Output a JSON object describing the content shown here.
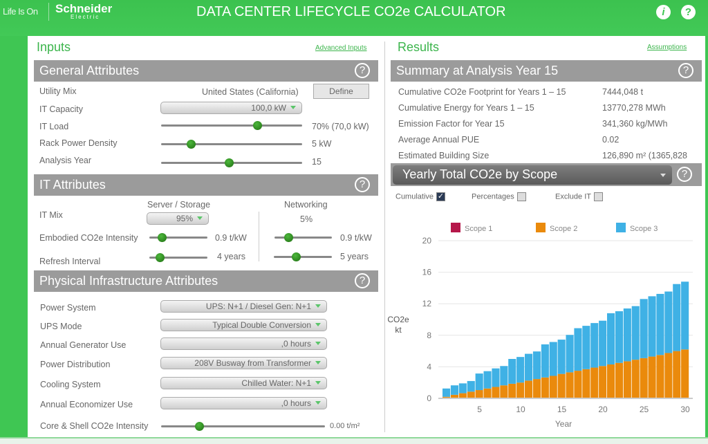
{
  "header": {
    "life_is_on": "Life Is On",
    "brand": "Schneider",
    "brand_sub": "Electric",
    "title": "DATA CENTER LIFECYCLE CO2e CALCULATOR",
    "info_icon": "i",
    "help_icon": "?"
  },
  "inputs": {
    "title": "Inputs",
    "advanced_link": "Advanced Inputs",
    "general": {
      "title": "General Attributes",
      "utility_mix": {
        "label": "Utility Mix",
        "value": "United States (California)",
        "button": "Define"
      },
      "it_capacity": {
        "label": "IT Capacity",
        "value": "100,0 kW"
      },
      "it_load": {
        "label": "IT Load",
        "value": "70% (70,0 kW)",
        "slider_fraction": 0.68
      },
      "rack_density": {
        "label": "Rack Power Density",
        "value": "5 kW",
        "slider_fraction": 0.21
      },
      "analysis_year": {
        "label": "Analysis Year",
        "value": "15",
        "slider_fraction": 0.48
      }
    },
    "it": {
      "title": "IT Attributes",
      "col_server": "Server / Storage",
      "col_network": "Networking",
      "it_mix": {
        "label": "IT Mix",
        "server": "95%",
        "network": "5%"
      },
      "embodied": {
        "label": "Embodied CO2e Intensity",
        "server": "0.9 t/kW",
        "network": "0.9 t/kW",
        "server_fraction": 0.22,
        "network_fraction": 0.24
      },
      "refresh": {
        "label": "Refresh Interval",
        "server": "4 years",
        "network": "5 years",
        "server_fraction": 0.18,
        "network_fraction": 0.38
      }
    },
    "physical": {
      "title": "Physical Infrastructure Attributes",
      "rows": [
        {
          "label": "Power System",
          "value": "UPS: N+1 / Diesel Gen: N+1"
        },
        {
          "label": "UPS Mode",
          "value": "Typical Double Conversion"
        },
        {
          "label": "Annual Generator Use",
          "value": ",0 hours"
        },
        {
          "label": "Power Distribution",
          "value": "208V Busway from Transformer"
        },
        {
          "label": "Cooling System",
          "value": "Chilled Water: N+1"
        },
        {
          "label": "Annual Economizer Use",
          "value": ",0 hours"
        }
      ],
      "core_shell": {
        "label": "Core & Shell CO2e Intensity",
        "value": "0.00 t/m²",
        "slider_fraction": 0.23
      }
    }
  },
  "results": {
    "title": "Results",
    "assumptions_link": "Assumptions",
    "summary": {
      "title": "Summary at Analysis Year 15",
      "rows": [
        {
          "label": "Cumulative CO2e Footprint for Years 1 – 15",
          "value": "7444,048 t"
        },
        {
          "label": "Cumulative Energy for Years 1 – 15",
          "value": "13770,278 MWh"
        },
        {
          "label": "Emission Factor for Year 15",
          "value": "341,360 kg/MWh"
        },
        {
          "label": "Average Annual PUE",
          "value": "0.02"
        },
        {
          "label": "Estimated Building Size",
          "value": "126,890 m² (1365,828"
        }
      ]
    },
    "chart_select": "Yearly Total CO2e by Scope",
    "options": {
      "cumulative": "Cumulative",
      "cumulative_checked": true,
      "percentages": "Percentages",
      "percentages_checked": false,
      "exclude_it": "Exclude IT",
      "exclude_it_checked": false
    }
  },
  "chart_data": {
    "type": "bar",
    "stacked": true,
    "xlabel": "Year",
    "ylabel": "CO2e kt",
    "ylim": [
      0,
      20
    ],
    "yticks": [
      0,
      4,
      8,
      12,
      16,
      20
    ],
    "xticks": [
      5,
      10,
      15,
      20,
      25,
      30
    ],
    "grid": true,
    "legend": "top",
    "x": [
      1,
      2,
      3,
      4,
      5,
      6,
      7,
      8,
      9,
      10,
      11,
      12,
      13,
      14,
      15,
      16,
      17,
      18,
      19,
      20,
      21,
      22,
      23,
      24,
      25,
      26,
      27,
      28,
      29,
      30
    ],
    "series": [
      {
        "name": "Scope 1",
        "color": "#b5174a",
        "values": [
          0,
          0,
          0,
          0,
          0,
          0,
          0,
          0,
          0,
          0,
          0,
          0,
          0,
          0,
          0,
          0,
          0,
          0,
          0,
          0,
          0,
          0,
          0,
          0,
          0,
          0,
          0,
          0,
          0,
          0
        ]
      },
      {
        "name": "Scope 2",
        "color": "#ea8a0c",
        "values": [
          0.2,
          0.45,
          0.65,
          0.85,
          1.05,
          1.25,
          1.45,
          1.65,
          1.85,
          2.0,
          2.25,
          2.45,
          2.65,
          2.85,
          3.1,
          3.3,
          3.5,
          3.7,
          3.9,
          4.1,
          4.3,
          4.5,
          4.7,
          4.9,
          5.1,
          5.3,
          5.5,
          5.75,
          6.0,
          6.2
        ]
      },
      {
        "name": "Scope 3",
        "color": "#3fb1e5",
        "values": [
          1.05,
          1.2,
          1.25,
          1.35,
          2.1,
          2.2,
          2.35,
          2.45,
          3.15,
          3.25,
          3.4,
          3.5,
          4.2,
          4.3,
          4.35,
          4.75,
          5.4,
          5.5,
          5.65,
          5.75,
          6.5,
          6.55,
          6.7,
          6.8,
          7.5,
          7.65,
          7.75,
          7.8,
          8.5,
          8.6
        ]
      }
    ]
  }
}
